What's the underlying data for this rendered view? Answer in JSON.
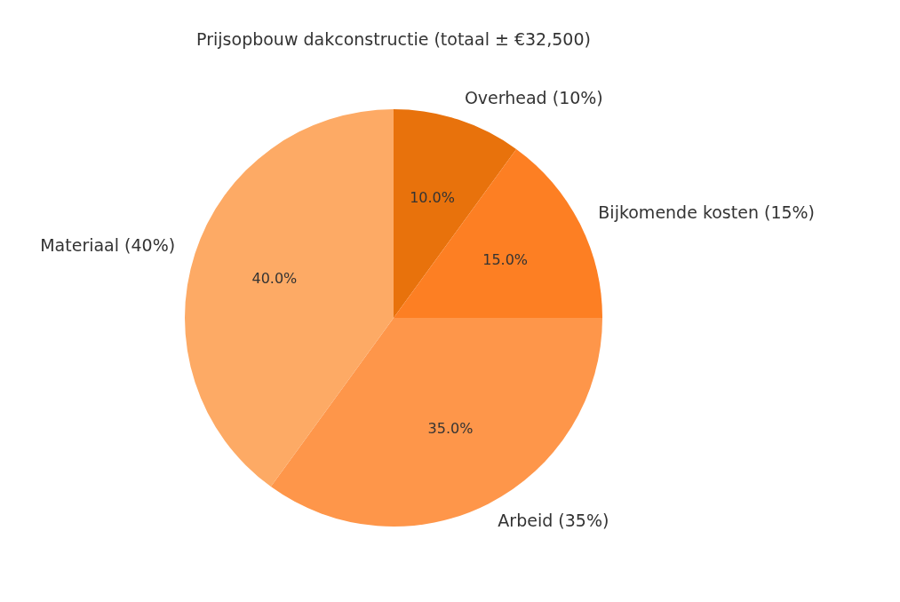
{
  "chart_data": {
    "type": "pie",
    "title": "Prijsopbouw dakconstructie (totaal ± €32,500)",
    "categories": [
      "Overhead (10%)",
      "Bijkomende kosten (15%)",
      "Arbeid (35%)",
      "Materiaal (40%)"
    ],
    "values": [
      10,
      15,
      35,
      40
    ],
    "colors": [
      "#e8720c",
      "#fd7f23",
      "#fe964a",
      "#fdaa65"
    ],
    "value_labels": [
      "10.0%",
      "15.0%",
      "35.0%",
      "40.0%"
    ]
  }
}
